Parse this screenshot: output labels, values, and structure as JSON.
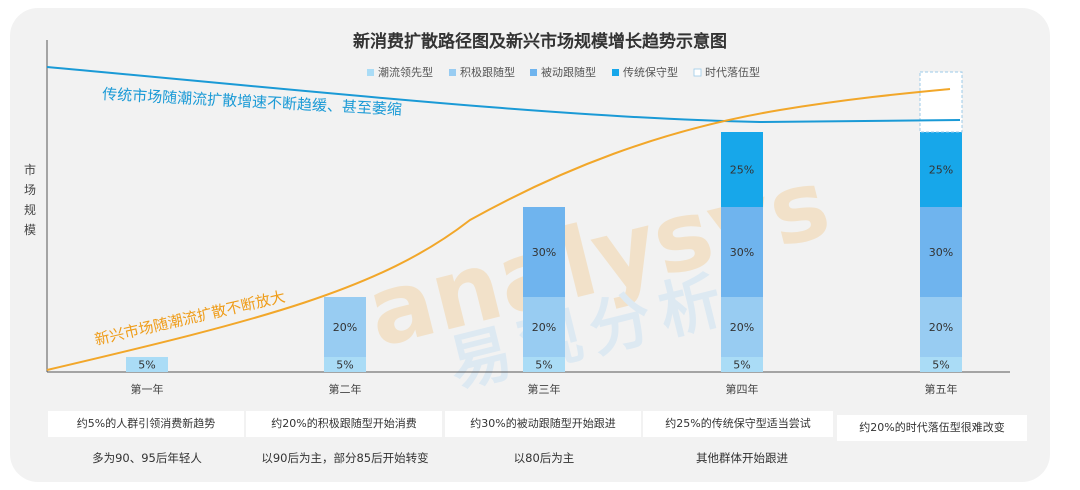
{
  "colors": {
    "trendsetter": "#aadcf6",
    "active_follower": "#98ccf2",
    "passive_follower": "#6fb4ee",
    "conservative": "#17a7ea",
    "laggard": "#ffffff",
    "traditional_curve": "#1a9ad6",
    "emerging_curve": "#f2a72a",
    "axis": "#555555"
  },
  "chart_data": {
    "type": "bar",
    "stacked": true,
    "title": "新消费扩散路径图及新兴市场规模增长趋势示意图",
    "ylabel": "市场规模",
    "categories": [
      "第一年",
      "第二年",
      "第三年",
      "第四年",
      "第五年"
    ],
    "ylim": [
      0,
      100
    ],
    "legend_position": "top-right",
    "series": [
      {
        "name": "潮流领先型",
        "color_key": "trendsetter",
        "values": [
          5,
          5,
          5,
          5,
          5
        ],
        "labels": [
          "5%",
          "5%",
          "5%",
          "5%",
          "5%"
        ]
      },
      {
        "name": "积极跟随型",
        "color_key": "active_follower",
        "values": [
          0,
          20,
          20,
          20,
          20
        ],
        "labels": [
          "",
          "20%",
          "20%",
          "20%",
          "20%"
        ]
      },
      {
        "name": "被动跟随型",
        "color_key": "passive_follower",
        "values": [
          0,
          0,
          30,
          30,
          30
        ],
        "labels": [
          "",
          "",
          "30%",
          "30%",
          "30%"
        ]
      },
      {
        "name": "传统保守型",
        "color_key": "conservative",
        "values": [
          0,
          0,
          0,
          25,
          25
        ],
        "labels": [
          "",
          "",
          "",
          "25%",
          "25%"
        ]
      },
      {
        "name": "时代落伍型",
        "color_key": "laggard",
        "values": [
          0,
          0,
          0,
          0,
          20
        ],
        "labels": [
          "",
          "",
          "",
          "",
          ""
        ]
      }
    ],
    "annotations": {
      "traditional_curve": "传统市场随潮流扩散增速不断趋缓、甚至萎缩",
      "emerging_curve": "新兴市场随潮流扩散不断放大"
    }
  },
  "descriptions": [
    {
      "box": "约5%的人群引领消费新趋势",
      "sub": "多为90、95后年轻人"
    },
    {
      "box": "约20%的积极跟随型开始消费",
      "sub": "以90后为主，部分85后开始转变"
    },
    {
      "box": "约30%的被动跟随型开始跟进",
      "sub": "以80后为主"
    },
    {
      "box": "约25%的传统保守型适当尝试",
      "sub": "其他群体开始跟进"
    },
    {
      "box": "约20%的时代落伍型很难改变",
      "sub": ""
    }
  ],
  "watermark": {
    "latin": "analysys",
    "chinese": "易观分析"
  }
}
